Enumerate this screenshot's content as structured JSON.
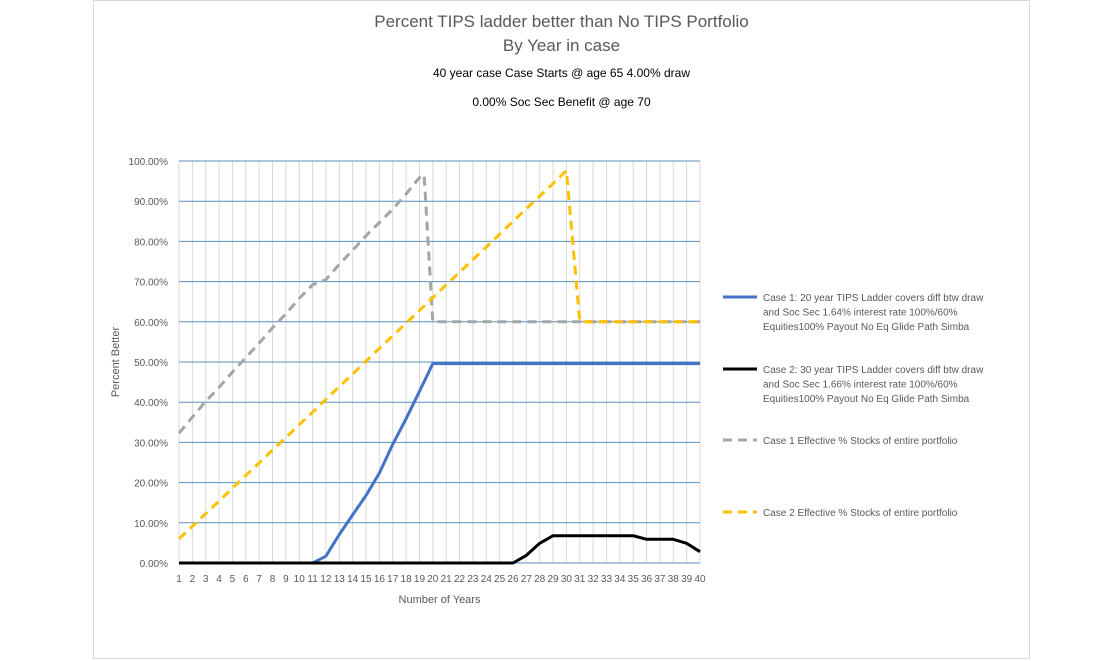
{
  "chart_data": {
    "type": "line",
    "title": "Percent TIPS ladder better than No TIPS Portfolio",
    "subtitle": "By Year in case",
    "info_line_1": "40 year case   Case Starts @ age 65 4.00% draw",
    "info_line_2": "0.00%  Soc Sec Benefit   @ age 70",
    "xlabel": "Number  of Years",
    "ylabel": "Percent Better",
    "x": [
      1,
      2,
      3,
      4,
      5,
      6,
      7,
      8,
      9,
      10,
      11,
      12,
      13,
      14,
      15,
      16,
      17,
      18,
      19,
      20,
      21,
      22,
      23,
      24,
      25,
      26,
      27,
      28,
      29,
      30,
      31,
      32,
      33,
      34,
      35,
      36,
      37,
      38,
      39,
      40
    ],
    "ylim": [
      0,
      100
    ],
    "yticks": [
      "0.00%",
      "10.00%",
      "20.00%",
      "30.00%",
      "40.00%",
      "50.00%",
      "60.00%",
      "70.00%",
      "80.00%",
      "90.00%",
      "100.00%"
    ],
    "grid": true,
    "legend_position": "right",
    "series": [
      {
        "name": "Case 1: 20 year TIPS Ladder covers diff btw draw and Soc Sec 1.64% interest rate 100%/60% Equities100% Payout No Eq Glide Path Simba",
        "legend_lines": [
          "Case 1: 20 year TIPS Ladder covers diff btw draw",
          "and Soc Sec 1.64% interest rate 100%/60%",
          "Equities100% Payout No Eq Glide Path Simba"
        ],
        "color": "#4472c4",
        "dash": "solid",
        "values": [
          0,
          0,
          0,
          0,
          0,
          0,
          0,
          0,
          0,
          0,
          0,
          1.7,
          7.1,
          12,
          16.8,
          22.4,
          29.5,
          35.9,
          42.7,
          49.6,
          49.6,
          49.6,
          49.6,
          49.6,
          49.6,
          49.6,
          49.6,
          49.6,
          49.6,
          49.6,
          49.6,
          49.6,
          49.6,
          49.6,
          49.6,
          49.6,
          49.6,
          49.6,
          49.6,
          49.6
        ]
      },
      {
        "name": "Case 2: 30 year TIPS Ladder covers diff btw draw and Soc Sec 1.66% interest rate 100%/60% Equities100% Payout No Eq Glide Path Simba",
        "legend_lines": [
          "Case 2: 30 year TIPS Ladder covers diff btw draw",
          "and Soc Sec 1.66% interest rate 100%/60%",
          "Equities100% Payout No Eq Glide Path Simba"
        ],
        "color": "#000000",
        "dash": "solid",
        "values": [
          0,
          0,
          0,
          0,
          0,
          0,
          0,
          0,
          0,
          0,
          0,
          0,
          0,
          0,
          0,
          0,
          0,
          0,
          0,
          0,
          0,
          0,
          0,
          0,
          0,
          0,
          1.9,
          4.9,
          6.8,
          6.8,
          6.8,
          6.8,
          6.8,
          6.8,
          6.8,
          5.9,
          5.9,
          5.9,
          4.9,
          2.8
        ]
      },
      {
        "name": "Case 1 Effective % Stocks of entire portfolio",
        "legend_lines": [
          "Case 1 Effective % Stocks of entire portfolio"
        ],
        "color": "#a5a5a5",
        "dash": "dashed",
        "values": [
          32.3,
          36.3,
          40.2,
          43.7,
          47.5,
          51.1,
          54.7,
          58.5,
          62,
          65.8,
          69.2,
          70.5,
          74.3,
          77.8,
          81.4,
          84.7,
          88,
          91.8,
          95.9,
          60,
          60,
          60,
          60,
          60,
          60,
          60,
          60,
          60,
          60,
          60,
          60,
          60,
          60,
          60,
          60,
          60,
          60,
          60,
          60,
          60
        ],
        "extra_point": {
          "x": 19.35,
          "y": 96.6
        }
      },
      {
        "name": "Case 2 Effective % Stocks of entire portfolio",
        "legend_lines": [
          "Case 2 Effective % Stocks of entire portfolio"
        ],
        "color": "#ffc000",
        "dash": "dashed",
        "values": [
          6,
          9.1,
          12.3,
          15.4,
          18.6,
          21.8,
          24.9,
          28.1,
          31.2,
          34.4,
          37.5,
          40.7,
          43.9,
          47,
          50.2,
          53.4,
          56.5,
          59.7,
          62.8,
          66,
          69.2,
          72.3,
          75.5,
          78.6,
          81.8,
          85,
          88.1,
          91.3,
          94.4,
          97.6,
          60,
          60,
          60,
          60,
          60,
          60,
          60,
          60,
          60,
          60
        ]
      }
    ]
  }
}
